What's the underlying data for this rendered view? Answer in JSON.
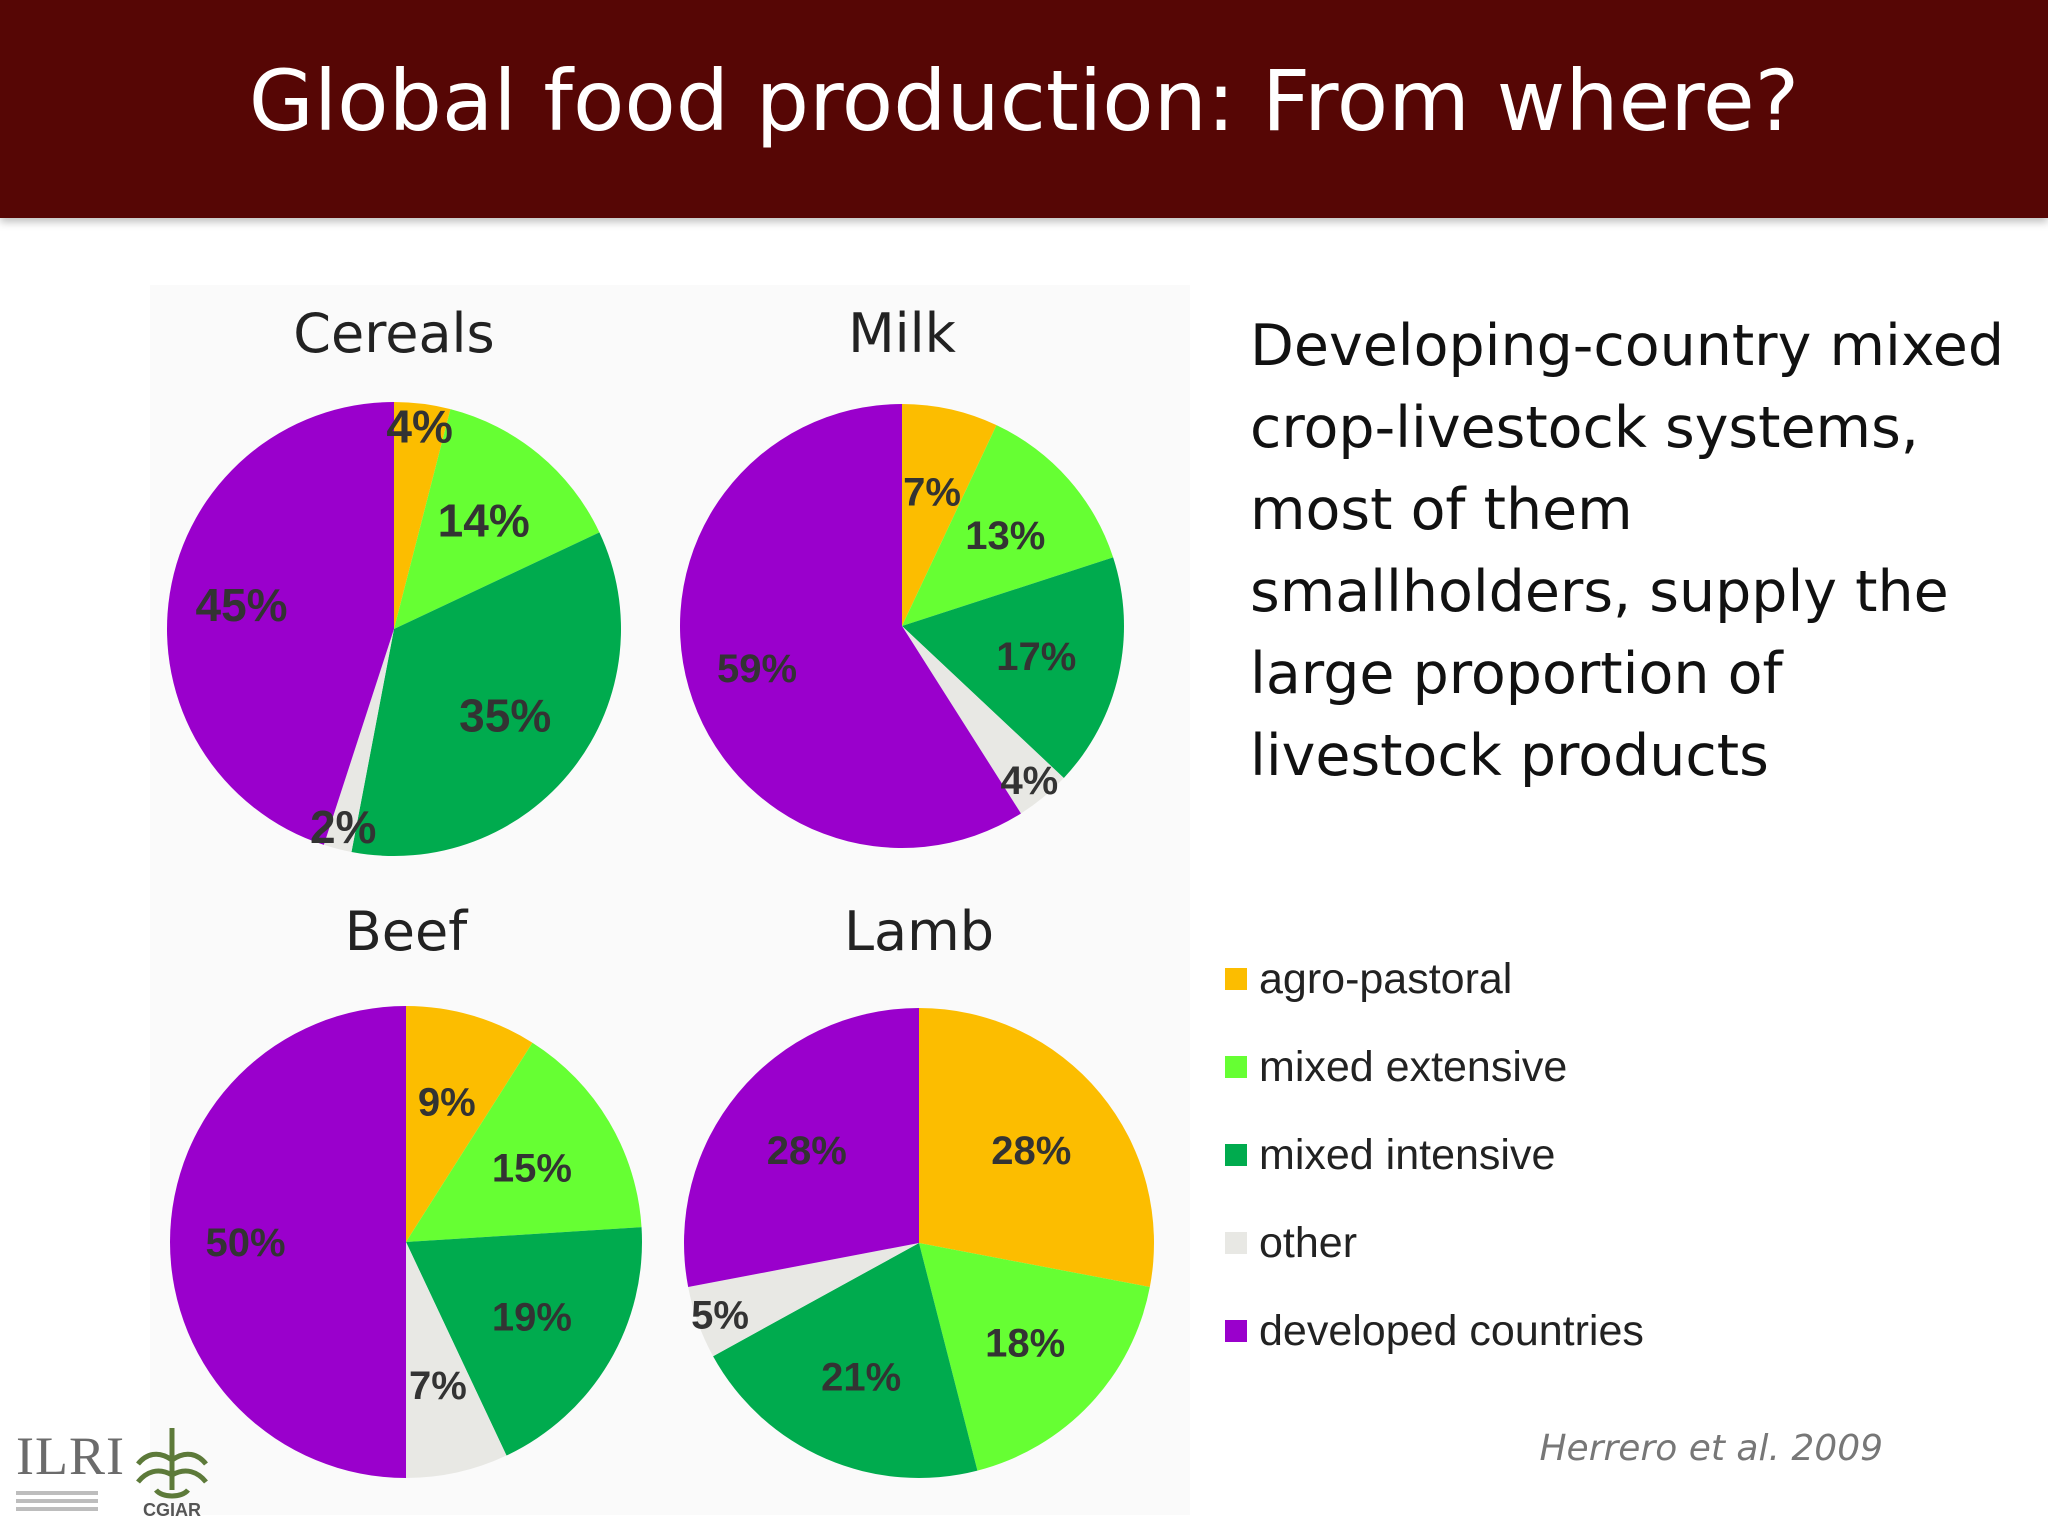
{
  "slide": {
    "title": "Global food production: From where?",
    "note": "Developing-country mixed crop-livestock systems, most of them smallholders, supply the large proportion of livestock products",
    "citation": "Herrero et al. 2009"
  },
  "logos": {
    "ilri": "ILRI",
    "cgiar": "CGIAR"
  },
  "colors": {
    "agro-pastoral": "#fcbd00",
    "mixed extensive": "#66ff33",
    "mixed intensive": "#00ab4e",
    "other": "#e8e8e4",
    "developed countries": "#9a00cc"
  },
  "chart_data": [
    {
      "type": "pie",
      "title": "Cereals",
      "categories": [
        "agro-pastoral",
        "mixed extensive",
        "mixed intensive",
        "other",
        "developed countries"
      ],
      "values": [
        4,
        14,
        35,
        2,
        45
      ],
      "labels": [
        "4%",
        "14%",
        "35%",
        "2%",
        "45%"
      ]
    },
    {
      "type": "pie",
      "title": "Milk",
      "categories": [
        "agro-pastoral",
        "mixed extensive",
        "mixed intensive",
        "other",
        "developed countries"
      ],
      "values": [
        7,
        13,
        17,
        4,
        59
      ],
      "labels": [
        "7%",
        "13%",
        "17%",
        "4%",
        "59%"
      ]
    },
    {
      "type": "pie",
      "title": "Beef",
      "categories": [
        "agro-pastoral",
        "mixed extensive",
        "mixed intensive",
        "other",
        "developed countries"
      ],
      "values": [
        9,
        15,
        19,
        7,
        50
      ],
      "labels": [
        "9%",
        "15%",
        "19%",
        "7%",
        "50%"
      ]
    },
    {
      "type": "pie",
      "title": "Lamb",
      "categories": [
        "agro-pastoral",
        "mixed extensive",
        "mixed intensive",
        "other",
        "developed countries"
      ],
      "values": [
        28,
        18,
        21,
        5,
        28
      ],
      "labels": [
        "28%",
        "18%",
        "21%",
        "5%",
        "28%"
      ]
    }
  ],
  "legend": {
    "placement": "right",
    "items": [
      "agro-pastoral",
      "mixed extensive",
      "mixed intensive",
      "other",
      "developed countries"
    ]
  }
}
